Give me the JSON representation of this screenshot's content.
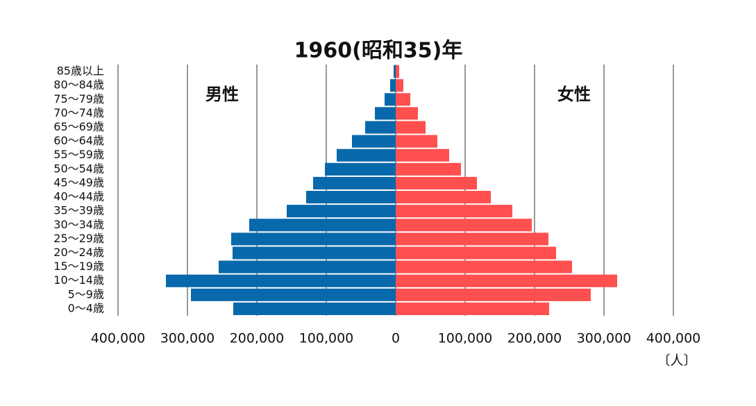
{
  "chart_data": {
    "type": "pyramid",
    "title": "1960(昭和35)年",
    "unit": "〔人〕",
    "categories": [
      "85歳以上",
      "80〜84歳",
      "75〜79歳",
      "70〜74歳",
      "65〜69歳",
      "60〜64歳",
      "55〜59歳",
      "50〜54歳",
      "45〜49歳",
      "40〜44歳",
      "35〜39歳",
      "30〜34歳",
      "25〜29歳",
      "20〜24歳",
      "15〜19歳",
      "10〜14歳",
      "5〜9歳",
      "0〜4歳"
    ],
    "series": [
      {
        "name": "男性",
        "color": "#0868ac",
        "values": [
          -3000,
          -8000,
          -16000,
          -30000,
          -44000,
          -63000,
          -85000,
          -102000,
          -119000,
          -129000,
          -157000,
          -211000,
          -237000,
          -235000,
          -255000,
          -331000,
          -295000,
          -234000
        ]
      },
      {
        "name": "女性",
        "color": "#ff4f4f",
        "values": [
          5000,
          11000,
          21000,
          32000,
          43000,
          60000,
          77000,
          94000,
          117000,
          137000,
          168000,
          196000,
          220000,
          231000,
          254000,
          319000,
          281000,
          221000
        ]
      }
    ],
    "xlim": [
      -400000,
      400000
    ],
    "xticks": [
      {
        "value": -400000,
        "label": "400,000"
      },
      {
        "value": -300000,
        "label": "300,000"
      },
      {
        "value": -200000,
        "label": "200,000"
      },
      {
        "value": -100000,
        "label": "100,000"
      },
      0,
      {
        "value": 100000,
        "label": "100,000"
      },
      {
        "value": 200000,
        "label": "200,000"
      },
      {
        "value": 300000,
        "label": "300,000"
      },
      {
        "value": 400000,
        "label": "400,000"
      }
    ],
    "grid": true
  }
}
